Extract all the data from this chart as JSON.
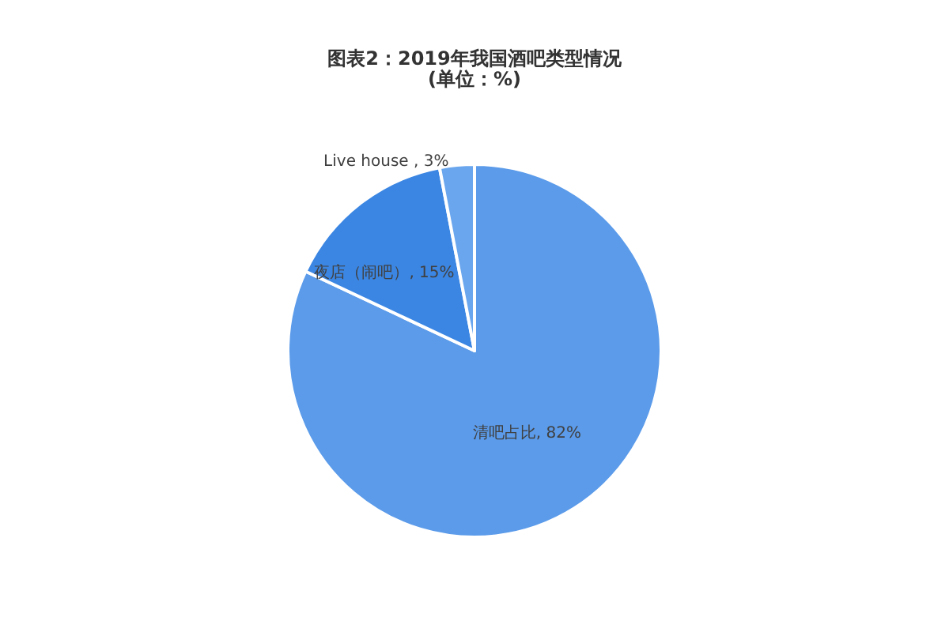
{
  "chart_data": {
    "type": "pie",
    "title": "图表2：2019年我国酒吧类型情况",
    "subtitle": "(单位：%)",
    "categories": [
      "清吧占比",
      "夜店（闹吧）",
      "Live house"
    ],
    "values": [
      82,
      15,
      3
    ],
    "value_labels": [
      "82%",
      "15%",
      "3%"
    ],
    "colors": [
      "#5b9bea",
      "#3b86e3",
      "#6aa6ee"
    ]
  }
}
